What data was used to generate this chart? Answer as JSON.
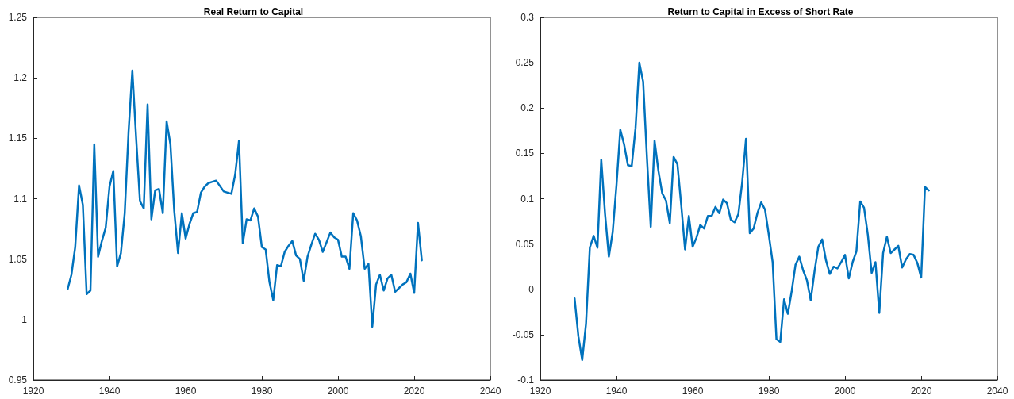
{
  "chart_data": [
    {
      "type": "line",
      "title": "Real Return to Capital",
      "x": [
        1929,
        1930,
        1931,
        1932,
        1933,
        1934,
        1935,
        1936,
        1937,
        1938,
        1939,
        1940,
        1941,
        1942,
        1943,
        1944,
        1945,
        1946,
        1947,
        1948,
        1949,
        1950,
        1951,
        1952,
        1953,
        1954,
        1955,
        1956,
        1957,
        1958,
        1959,
        1960,
        1961,
        1962,
        1963,
        1964,
        1965,
        1966,
        1967,
        1968,
        1970,
        1972,
        1973,
        1974,
        1975,
        1976,
        1977,
        1978,
        1979,
        1980,
        1981,
        1982,
        1983,
        1984,
        1985,
        1986,
        1987,
        1988,
        1989,
        1990,
        1991,
        1992,
        1993,
        1994,
        1995,
        1996,
        1997,
        1998,
        1999,
        2000,
        2001,
        2002,
        2003,
        2004,
        2005,
        2006,
        2007,
        2008,
        2009,
        2010,
        2011,
        2012,
        2013,
        2014,
        2015,
        2016,
        2017,
        2018,
        2019,
        2020,
        2021,
        2022
      ],
      "series": [
        {
          "color": "#0072bd",
          "values": [
            1.025,
            1.037,
            1.06,
            1.111,
            1.095,
            1.021,
            1.024,
            1.145,
            1.052,
            1.065,
            1.076,
            1.11,
            1.123,
            1.044,
            1.055,
            1.088,
            1.155,
            1.206,
            1.15,
            1.098,
            1.092,
            1.178,
            1.083,
            1.107,
            1.108,
            1.088,
            1.164,
            1.145,
            1.09,
            1.055,
            1.088,
            1.067,
            1.079,
            1.088,
            1.089,
            1.105,
            1.11,
            1.113,
            1.114,
            1.115,
            1.106,
            1.104,
            1.12,
            1.148,
            1.063,
            1.083,
            1.082,
            1.092,
            1.085,
            1.06,
            1.058,
            1.031,
            1.016,
            1.045,
            1.044,
            1.056,
            1.061,
            1.065,
            1.053,
            1.05,
            1.032,
            1.052,
            1.062,
            1.071,
            1.066,
            1.056,
            1.064,
            1.072,
            1.068,
            1.066,
            1.052,
            1.052,
            1.042,
            1.088,
            1.082,
            1.069,
            1.042,
            1.046,
            0.994,
            1.029,
            1.037,
            1.024,
            1.034,
            1.037,
            1.023,
            1.026,
            1.029,
            1.031,
            1.038,
            1.022,
            1.08,
            1.049
          ]
        }
      ],
      "xlim": [
        1920,
        2040
      ],
      "xticks": [
        1920,
        1940,
        1960,
        1980,
        2000,
        2020,
        2040
      ],
      "ylim": [
        0.95,
        1.25
      ],
      "yticks": [
        0.95,
        1,
        1.05,
        1.1,
        1.15,
        1.2,
        1.25
      ],
      "grid": false,
      "marker": "none",
      "line_style": "solid"
    },
    {
      "type": "line",
      "title": "Return to Capital in Excess of Short Rate",
      "x": [
        1929,
        1930,
        1931,
        1932,
        1933,
        1934,
        1935,
        1936,
        1937,
        1938,
        1939,
        1940,
        1941,
        1942,
        1943,
        1944,
        1945,
        1946,
        1947,
        1948,
        1949,
        1950,
        1951,
        1952,
        1953,
        1954,
        1955,
        1956,
        1957,
        1958,
        1959,
        1960,
        1961,
        1962,
        1963,
        1964,
        1965,
        1966,
        1967,
        1968,
        1969,
        1970,
        1971,
        1972,
        1973,
        1974,
        1975,
        1976,
        1977,
        1978,
        1979,
        1980,
        1981,
        1982,
        1983,
        1984,
        1985,
        1986,
        1987,
        1988,
        1989,
        1990,
        1991,
        1992,
        1993,
        1994,
        1995,
        1996,
        1997,
        1998,
        1999,
        2000,
        2001,
        2002,
        2003,
        2004,
        2005,
        2006,
        2007,
        2008,
        2009,
        2010,
        2011,
        2012,
        2013,
        2014,
        2015,
        2016,
        2017,
        2018,
        2019,
        2020,
        2021,
        2022
      ],
      "series": [
        {
          "color": "#0072bd",
          "values": [
            -0.01,
            -0.052,
            -0.078,
            -0.038,
            0.046,
            0.059,
            0.046,
            0.143,
            0.083,
            0.036,
            0.063,
            0.115,
            0.176,
            0.16,
            0.137,
            0.136,
            0.178,
            0.25,
            0.229,
            0.145,
            0.069,
            0.164,
            0.131,
            0.106,
            0.098,
            0.073,
            0.146,
            0.138,
            0.093,
            0.044,
            0.081,
            0.047,
            0.057,
            0.071,
            0.067,
            0.081,
            0.081,
            0.091,
            0.084,
            0.099,
            0.095,
            0.077,
            0.074,
            0.083,
            0.118,
            0.166,
            0.062,
            0.067,
            0.084,
            0.096,
            0.088,
            0.06,
            0.03,
            -0.055,
            -0.058,
            -0.011,
            -0.027,
            -0.002,
            0.027,
            0.036,
            0.021,
            0.01,
            -0.012,
            0.02,
            0.047,
            0.055,
            0.032,
            0.017,
            0.025,
            0.023,
            0.03,
            0.038,
            0.012,
            0.03,
            0.042,
            0.097,
            0.09,
            0.06,
            0.018,
            0.03,
            -0.026,
            0.04,
            0.058,
            0.04,
            0.044,
            0.048,
            0.024,
            0.033,
            0.039,
            0.038,
            0.029,
            0.013,
            0.113,
            0.109
          ]
        }
      ],
      "xlim": [
        1920,
        2040
      ],
      "xticks": [
        1920,
        1940,
        1960,
        1980,
        2000,
        2020,
        2040
      ],
      "ylim": [
        -0.1,
        0.3
      ],
      "yticks": [
        -0.1,
        -0.05,
        0,
        0.05,
        0.1,
        0.15,
        0.2,
        0.25,
        0.3
      ],
      "grid": false,
      "marker": "none",
      "line_style": "solid"
    }
  ]
}
